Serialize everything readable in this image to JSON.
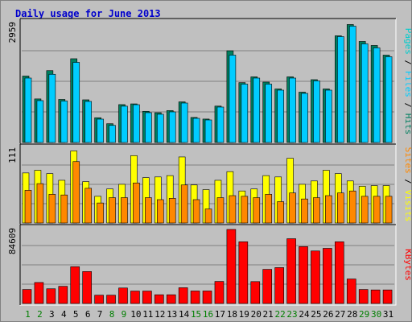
{
  "title": "Daily usage for June 2013",
  "colors": {
    "background": "#c0c0c0",
    "panel": "#c0c0c0",
    "grid": "#808080",
    "title": "#0000cc",
    "hits": "#007f5f",
    "files": "#00ccff",
    "pages": "#00cccc",
    "visits": "#ffff00",
    "sites": "#ff8800",
    "kbytes": "#ff0000",
    "weekday_label": "#000000",
    "weekend_label": "#007f00"
  },
  "right_labels": {
    "top": [
      "Pages",
      " / ",
      "Files",
      " / ",
      "Hits"
    ],
    "middle": [
      "Sites",
      " / ",
      "Visits"
    ],
    "bottom": [
      "KBytes"
    ]
  },
  "chart_data": [
    {
      "type": "bar",
      "ylabel_max": "2959",
      "ylim": [
        0,
        2959
      ],
      "categories": [
        "1",
        "2",
        "3",
        "4",
        "5",
        "6",
        "7",
        "8",
        "9",
        "10",
        "11",
        "12",
        "13",
        "14",
        "15",
        "16",
        "17",
        "18",
        "19",
        "20",
        "21",
        "22",
        "23",
        "24",
        "25",
        "26",
        "27",
        "28",
        "29",
        "30",
        "31"
      ],
      "series": [
        {
          "name": "Hits",
          "values": [
            1650,
            1082,
            1785,
            1070,
            2080,
            1060,
            615,
            466,
            941,
            959,
            774,
            740,
            792,
            1009,
            622,
            582,
            904,
            2278,
            1487,
            1630,
            1500,
            1330,
            1630,
            1250,
            1560,
            1330,
            2650,
            2930,
            2510,
            2410,
            2170
          ]
        },
        {
          "name": "Files",
          "values": [
            1600,
            1040,
            1694,
            1030,
            1990,
            1020,
            580,
            425,
            902,
            939,
            741,
            701,
            760,
            980,
            600,
            560,
            880,
            2170,
            1450,
            1600,
            1450,
            1300,
            1600,
            1220,
            1530,
            1300,
            2630,
            2890,
            2450,
            2350,
            2130
          ]
        },
        {
          "name": "Pages",
          "values": [
            0,
            0,
            0,
            0,
            0,
            0,
            0,
            0,
            0,
            0,
            0,
            0,
            0,
            0,
            0,
            0,
            0,
            0,
            0,
            0,
            0,
            0,
            0,
            0,
            0,
            0,
            0,
            0,
            0,
            0,
            0
          ]
        }
      ]
    },
    {
      "type": "bar",
      "ylabel_max": "111",
      "ylim": [
        0,
        111
      ],
      "categories": [
        "1",
        "2",
        "3",
        "4",
        "5",
        "6",
        "7",
        "8",
        "9",
        "10",
        "11",
        "12",
        "13",
        "14",
        "15",
        "16",
        "17",
        "18",
        "19",
        "20",
        "21",
        "22",
        "23",
        "24",
        "25",
        "26",
        "27",
        "28",
        "29",
        "30",
        "31"
      ],
      "series": [
        {
          "name": "Visits",
          "values": [
            75,
            79,
            74,
            64,
            108,
            62,
            40,
            51,
            58,
            101,
            68,
            69,
            71,
            99,
            57,
            50,
            64,
            77,
            48,
            51,
            71,
            69,
            97,
            58,
            63,
            79,
            74,
            63,
            55,
            56,
            56
          ]
        },
        {
          "name": "Sites",
          "values": [
            49,
            59,
            43,
            42,
            92,
            52,
            30,
            38,
            38,
            60,
            38,
            35,
            37,
            57,
            35,
            21,
            38,
            41,
            40,
            38,
            43,
            32,
            45,
            36,
            38,
            41,
            45,
            48,
            40,
            40,
            40
          ]
        }
      ]
    },
    {
      "type": "bar",
      "ylabel_max": "84609",
      "ylim": [
        0,
        84609
      ],
      "categories": [
        "1",
        "2",
        "3",
        "4",
        "5",
        "6",
        "7",
        "8",
        "9",
        "10",
        "11",
        "12",
        "13",
        "14",
        "15",
        "16",
        "17",
        "18",
        "19",
        "20",
        "21",
        "22",
        "23",
        "24",
        "25",
        "26",
        "27",
        "28",
        "29",
        "30",
        "31"
      ],
      "series": [
        {
          "name": "KBytes",
          "values": [
            16000,
            24000,
            16800,
            19600,
            42000,
            36500,
            9500,
            9500,
            17700,
            14200,
            14200,
            10000,
            10000,
            18000,
            14300,
            14300,
            25200,
            84609,
            70500,
            25000,
            39000,
            41000,
            74000,
            65000,
            60000,
            63000,
            70500,
            28000,
            16000,
            15500,
            15500
          ]
        }
      ]
    }
  ]
}
